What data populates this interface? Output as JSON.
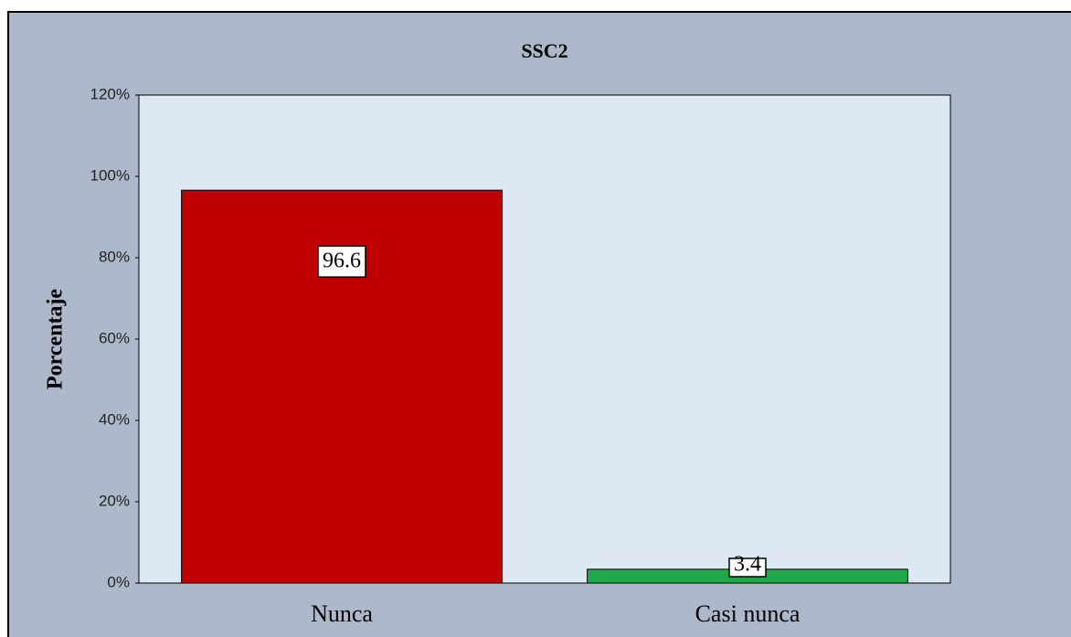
{
  "chart_data": {
    "type": "bar",
    "title": "SSC2",
    "y_label": "Porcentaje",
    "categories": [
      "Nunca",
      "Casi nunca"
    ],
    "values": [
      96.6,
      3.4
    ],
    "colors": [
      "#c00000",
      "#1ea84a"
    ],
    "ylim": [
      0,
      120
    ],
    "yticks": [
      {
        "value": 0,
        "label": "0%"
      },
      {
        "value": 20,
        "label": "20%"
      },
      {
        "value": 40,
        "label": "40%"
      },
      {
        "value": 60,
        "label": "60%"
      },
      {
        "value": 80,
        "label": "80%"
      },
      {
        "value": 100,
        "label": "100%"
      },
      {
        "value": 120,
        "label": "120%"
      }
    ]
  }
}
